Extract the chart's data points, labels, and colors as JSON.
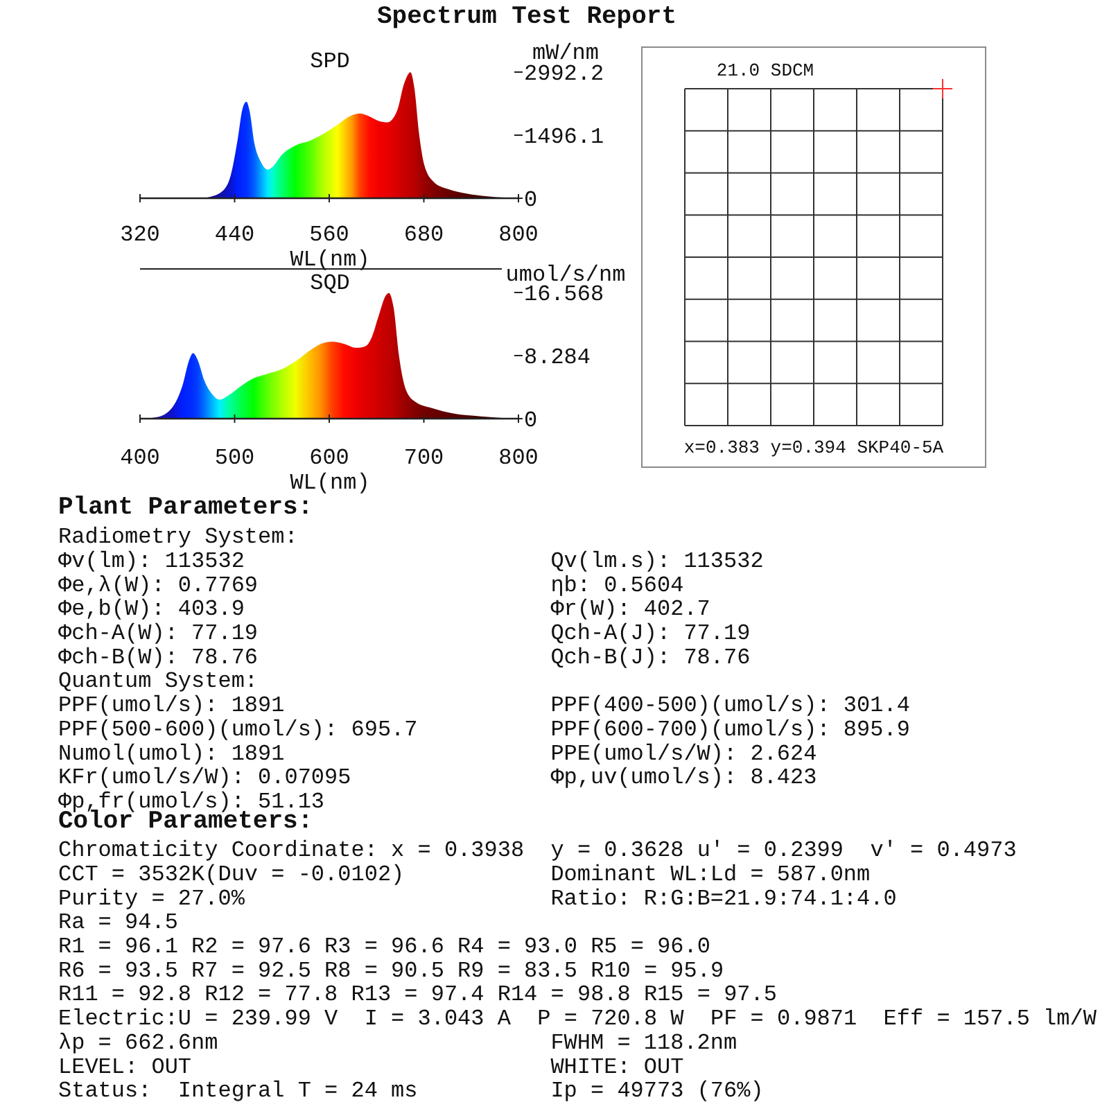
{
  "chart_data": [
    {
      "type": "area",
      "title": "Spectrum Test Report",
      "subtitle": "SPD",
      "xlabel": "WL(nm)",
      "ylabel": "mW/nm",
      "x": [
        320,
        380,
        400,
        406,
        424,
        435,
        444,
        450,
        455,
        459,
        465,
        473,
        482,
        488,
        500,
        517,
        535,
        552,
        570,
        588,
        599,
        611,
        623,
        634,
        646,
        655,
        663,
        668,
        674,
        681,
        693,
        710,
        734,
        763,
        800
      ],
      "series": [
        {
          "values": [
            0,
            0,
            0,
            20,
            160,
            540,
            1410,
            2120,
            2290,
            2070,
            1310,
            870,
            680,
            740,
            1030,
            1250,
            1360,
            1520,
            1740,
            1960,
            2010,
            1940,
            1830,
            1800,
            2070,
            2720,
            2990,
            2610,
            1520,
            760,
            380,
            220,
            110,
            40,
            0
          ],
          "colors": [
            "#000000",
            "#100030",
            "#1a0060",
            "#1a0a80",
            "#1010b0",
            "#0a14d0",
            "#0020ff",
            "#0028ff",
            "#0030ff",
            "#0040ff",
            "#0060ff",
            "#00a0ff",
            "#00e8ff",
            "#00ffd0",
            "#00ff70",
            "#00ff00",
            "#50ff00",
            "#b0ff00",
            "#ffff00",
            "#ffa000",
            "#ff4000",
            "#ff0a00",
            "#f00000",
            "#e80000",
            "#d80000",
            "#c80000",
            "#c00000",
            "#b80000",
            "#a80000",
            "#980000",
            "#800000",
            "#6a0000",
            "#500000",
            "#400000",
            "#300000"
          ]
        }
      ],
      "xlim": [
        320,
        800
      ],
      "xticks": [
        320,
        440,
        560,
        680,
        800
      ],
      "ylim": [
        0,
        2992.2
      ],
      "yticks": [
        0,
        1496.1,
        2992.2
      ]
    },
    {
      "type": "area",
      "title": "SQD",
      "xlabel": "WL(nm)",
      "ylabel": "umol/s/nm",
      "x": [
        400,
        418,
        433,
        445,
        452,
        456,
        461,
        468,
        477,
        484,
        494,
        508,
        520,
        535,
        550,
        564,
        579,
        591,
        603,
        616,
        628,
        638,
        645,
        652,
        660,
        663,
        668,
        674,
        681,
        691,
        711,
        730,
        760,
        800
      ],
      "series": [
        {
          "values": [
            0,
            0.2,
            1.3,
            4.4,
            7.7,
            8.6,
            7.7,
            5.0,
            3.1,
            2.5,
            3.1,
            4.4,
            5.3,
            5.9,
            6.5,
            7.5,
            8.9,
            9.8,
            10.1,
            9.8,
            9.3,
            9.5,
            10.7,
            13.4,
            16.2,
            16.5,
            14.6,
            8.0,
            3.8,
            2.2,
            1.3,
            0.7,
            0.3,
            0
          ],
          "colors": [
            "#181878",
            "#1a1aa0",
            "#1010c8",
            "#0020ff",
            "#0028ff",
            "#0030ff",
            "#0040ff",
            "#0070ff",
            "#00b8ff",
            "#00f0ff",
            "#00ffa0",
            "#00ff40",
            "#00ff00",
            "#60ff00",
            "#b0ff00",
            "#f0ff00",
            "#ffc000",
            "#ff9000",
            "#ff4000",
            "#ff0a00",
            "#f00000",
            "#e00000",
            "#d80000",
            "#d00000",
            "#c40000",
            "#c00000",
            "#b80000",
            "#a80000",
            "#980000",
            "#800000",
            "#680000",
            "#580000",
            "#400000",
            "#300000"
          ]
        }
      ],
      "xlim": [
        400,
        800
      ],
      "xticks": [
        400,
        500,
        600,
        700,
        800
      ],
      "ylim": [
        0,
        16.568
      ],
      "yticks": [
        0,
        8.284,
        16.568
      ]
    },
    {
      "type": "other",
      "title": "21.0 SDCM",
      "annotations": [
        "x=0.383 y=0.394 SKP40-5A"
      ]
    },
    {
      "type": "other",
      "title": "Plant Parameters:",
      "annotations": [
        "Radiometry System:",
        "Φv(lm): 113532                       Qv(lm.s): 113532",
        "Φe,λ(W): 0.7769                      ηb: 0.5604",
        "Φe,b(W): 403.9                       Φr(W): 402.7",
        "Φch-A(W): 77.19                      Qch-A(J): 77.19",
        "Φch-B(W): 78.76                      Qch-B(J): 78.76",
        "Quantum System:",
        "PPF(umol/s): 1891                    PPF(400-500)(umol/s): 301.4",
        "PPF(500-600)(umol/s): 695.7          PPF(600-700)(umol/s): 895.9",
        "Numol(umol): 1891                    PPE(umol/s/W): 2.624",
        "KFr(umol/s/W): 0.07095               Φp,uv(umol/s): 8.423",
        "Φp,fr(umol/s): 51.13"
      ]
    },
    {
      "type": "other",
      "title": "Color Parameters:",
      "annotations": [
        "Chromaticity Coordinate: x = 0.3938  y = 0.3628 u' = 0.2399  v' = 0.4973",
        "CCT = 3532K(Duv = -0.0102)           Dominant WL:Ld = 587.0nm",
        "Purity = 27.0%                       Ratio: R:G:B=21.9:74.1:4.0",
        "Ra = 94.5",
        "R1 = 96.1 R2 = 97.6 R3 = 96.6 R4 = 93.0 R5 = 96.0",
        "R6 = 93.5 R7 = 92.5 R8 = 90.5 R9 = 83.5 R10 = 95.9",
        "R11 = 92.8 R12 = 77.8 R13 = 97.4 R14 = 98.8 R15 = 97.5",
        "Electric:U = 239.99 V  I = 3.043 A  P = 720.8 W  PF = 0.9871  Eff = 157.5 lm/W",
        "λp = 662.6nm                         FWHM = 118.2nm",
        "LEVEL: OUT                           WHITE: OUT",
        "Status:  Integral T = 24 ms          Ip = 49773 (76%)"
      ]
    }
  ]
}
